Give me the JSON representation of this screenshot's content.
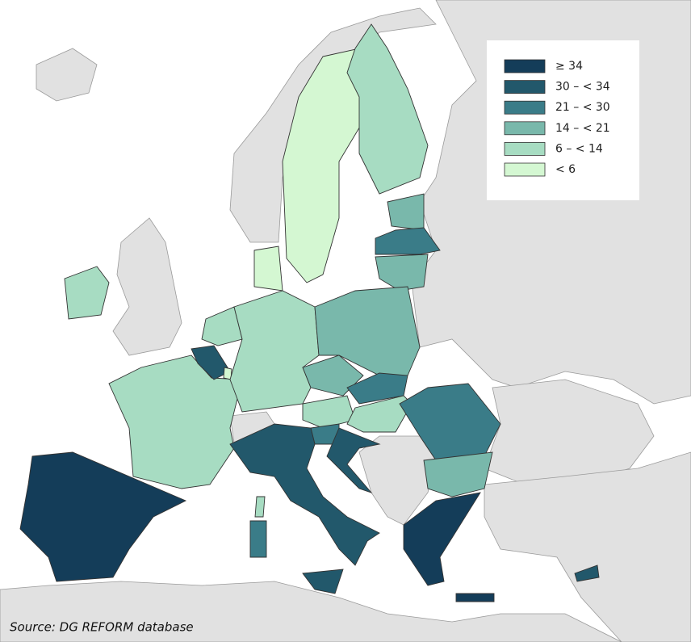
{
  "legend": [
    {
      "label": "≥ 34",
      "color": "#143d59"
    },
    {
      "label": "30 – < 34",
      "color": "#22586b"
    },
    {
      "label": "21 – < 30",
      "color": "#3a7c88"
    },
    {
      "label": "14 – < 21",
      "color": "#79b8ab"
    },
    {
      "label": "6 – < 14",
      "color": "#a7dcc2"
    },
    {
      "label": "< 6",
      "color": "#d4f7d2"
    }
  ],
  "source": "Source: DG REFORM database"
}
